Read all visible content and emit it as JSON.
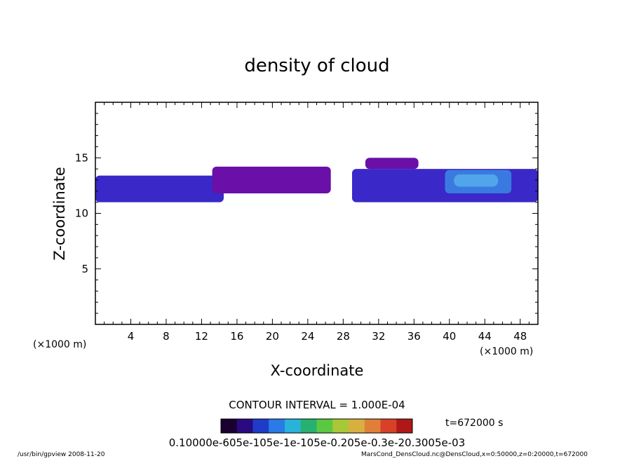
{
  "chart_data": {
    "type": "heatmap",
    "title": "density of cloud",
    "xlabel": "X-coordinate",
    "ylabel": "Z-coordinate",
    "x_unit": "(×1000 m)",
    "y_unit": "(×1000 m)",
    "xlim": [
      0,
      50
    ],
    "ylim": [
      0,
      20
    ],
    "x_ticks": [
      4,
      8,
      12,
      16,
      20,
      24,
      28,
      32,
      36,
      40,
      44,
      48
    ],
    "y_ticks": [
      5,
      10,
      15
    ],
    "contour_interval_text": "CONTOUR INTERVAL = 1.000E-04",
    "time_label": "t=672000 s",
    "colorbar_label_text": "0.10000e-605e-105e-1e-105e-0.205e-0.3e-20.3005e-03",
    "regions": [
      {
        "x": [
          0,
          14.5
        ],
        "z": [
          11.0,
          13.4
        ],
        "level": 2
      },
      {
        "x": [
          13.2,
          26.6
        ],
        "z": [
          11.8,
          14.2
        ],
        "level": 1
      },
      {
        "x": [
          29.0,
          50.0
        ],
        "z": [
          11.0,
          14.0
        ],
        "level": 2
      },
      {
        "x": [
          30.5,
          36.5
        ],
        "z": [
          14.0,
          15.0
        ],
        "level": 1
      },
      {
        "x": [
          39.5,
          47.0
        ],
        "z": [
          11.8,
          13.9
        ],
        "level": 3
      }
    ]
  },
  "footer": {
    "left": "/usr/bin/gpview   2008-11-20",
    "right": "MarsCond_DensCloud.nc@DensCloud,x=0:50000,z=0:20000,t=672000"
  },
  "colors": {
    "low": "#6a0fa8",
    "mid": "#3a28c8",
    "high": "#3a7ae0",
    "peak": "#62c8f4"
  }
}
